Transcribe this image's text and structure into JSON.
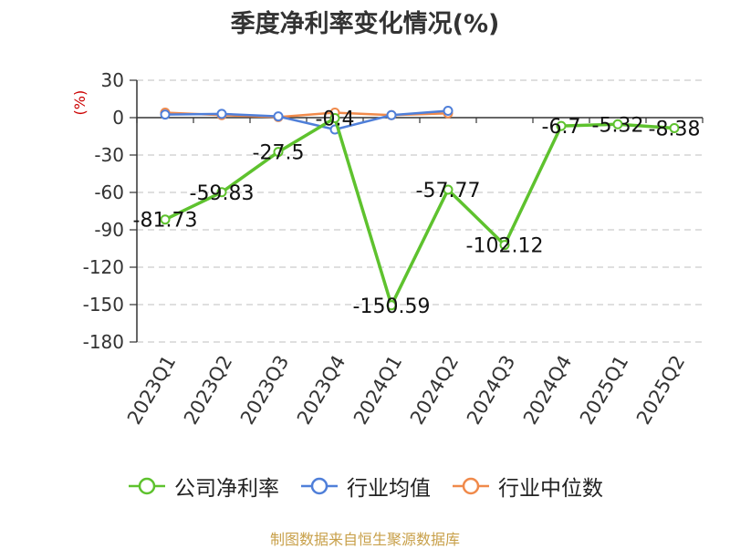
{
  "chart_data": {
    "type": "line",
    "title": "季度净利率变化情况(%)",
    "ylabel": "(%)",
    "categories": [
      "2023Q1",
      "2023Q2",
      "2023Q3",
      "2023Q4",
      "2024Q1",
      "2024Q2",
      "2024Q3",
      "2024Q4",
      "2025Q1",
      "2025Q2"
    ],
    "ylim": [
      -180,
      30
    ],
    "yticks": [
      30,
      0,
      -30,
      -60,
      -90,
      -120,
      -150,
      -180
    ],
    "grid": true,
    "legend_position": "bottom",
    "series": [
      {
        "name": "公司净利率",
        "color": "#5ec22e",
        "values": [
          -81.73,
          -59.83,
          -27.5,
          -0.4,
          -150.59,
          -57.77,
          -102.12,
          -6.7,
          -5.32,
          -8.38
        ],
        "labels": [
          "-81.73",
          "-59.83",
          "-27.5",
          "-0.4",
          "-150.59",
          "-57.77",
          "-102.12",
          "-6.7",
          "-5.32",
          "-8.38"
        ]
      },
      {
        "name": "行业均值",
        "color": "#4f7fd9",
        "values": [
          2.5,
          3.0,
          1.0,
          -9.5,
          2.0,
          5.5,
          null,
          null,
          null,
          null
        ]
      },
      {
        "name": "行业中位数",
        "color": "#f08a4b",
        "values": [
          4.0,
          2.0,
          0.5,
          4.0,
          2.0,
          3.5,
          null,
          null,
          null,
          null
        ]
      }
    ]
  },
  "source_note": "制图数据来自恒生聚源数据库",
  "colors": {
    "axis": "#333333",
    "grid": "#cccccc",
    "ylabel": "#cc0000",
    "source": "#c8a04a"
  }
}
